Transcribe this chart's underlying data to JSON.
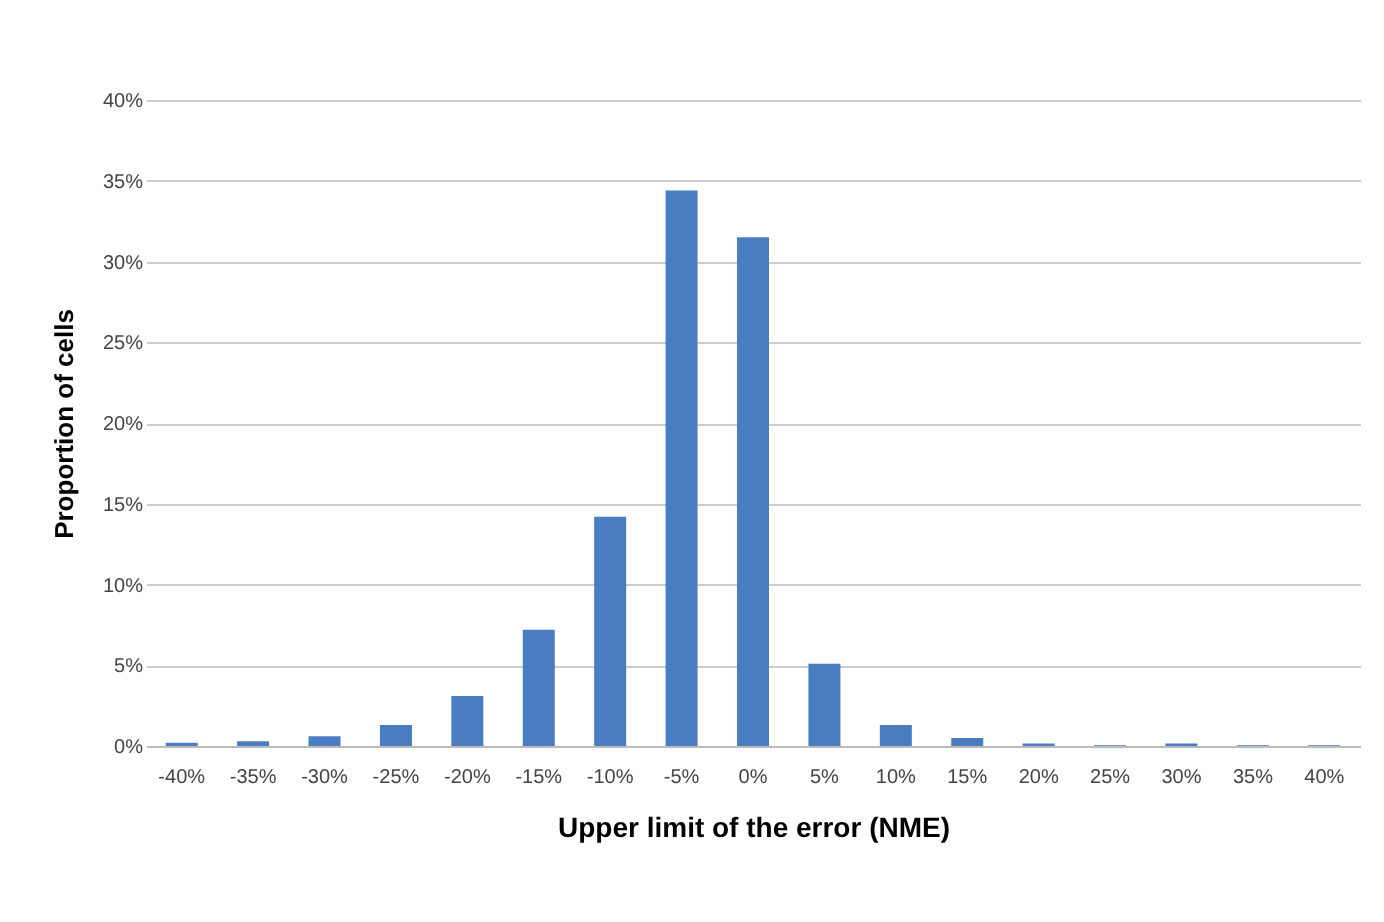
{
  "chart_data": {
    "type": "bar",
    "xlabel": "Upper limit of the error (NME)",
    "ylabel": "Proportion of cells",
    "categories": [
      "-40%",
      "-35%",
      "-30%",
      "-25%",
      "-20%",
      "-15%",
      "-10%",
      "-5%",
      "0%",
      "5%",
      "10%",
      "15%",
      "20%",
      "25%",
      "30%",
      "35%",
      "40%"
    ],
    "values": [
      0.2,
      0.3,
      0.6,
      1.3,
      3.1,
      7.2,
      14.2,
      34.4,
      31.5,
      5.1,
      1.3,
      0.5,
      0.15,
      0.05,
      0.15,
      0.05,
      0.05
    ],
    "color": "#4a7cc2",
    "ylim": [
      0,
      40
    ],
    "yticks": [
      {
        "value": 0,
        "label": "0%"
      },
      {
        "value": 5,
        "label": "5%"
      },
      {
        "value": 10,
        "label": "10%"
      },
      {
        "value": 15,
        "label": "15%"
      },
      {
        "value": 20,
        "label": "20%"
      },
      {
        "value": 25,
        "label": "25%"
      },
      {
        "value": 30,
        "label": "30%"
      },
      {
        "value": 35,
        "label": "35%"
      },
      {
        "value": 40,
        "label": "40%"
      }
    ],
    "grid": "y"
  }
}
